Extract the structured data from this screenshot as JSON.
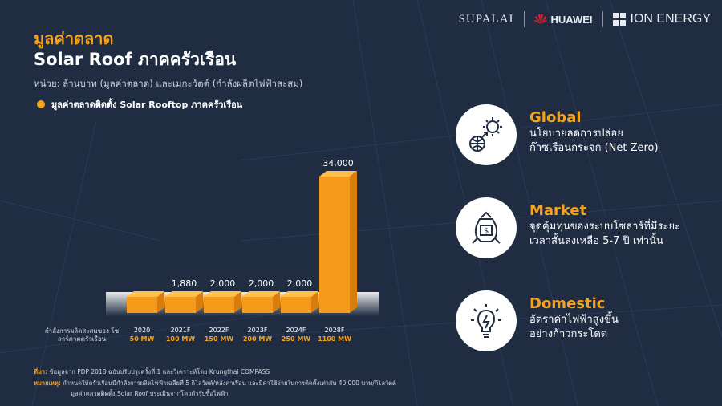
{
  "brands": {
    "supalai": "SUPALAI",
    "huawei": "HUAWEI",
    "ion": "ION ENERGY"
  },
  "header": {
    "title_th": "มูลค่าตลาด",
    "title_en": "Solar Roof ภาคครัวเรือน",
    "unit_note": "หน่วย: ล้านบาท (มูลค่าตลาด) และเมกะวัตต์ (กำลังผลิตไฟฟ้าสะสม)",
    "legend": "มูลค่าตลาดติดตั้ง Solar Rooftop ภาคครัวเรือน"
  },
  "colors": {
    "accent": "#f5a21c",
    "background": "#1f2c42"
  },
  "chart_data": {
    "type": "bar",
    "categories": [
      "2020",
      "2021F",
      "2022F",
      "2023F",
      "2024F",
      "2028F"
    ],
    "values": [
      null,
      1880,
      2000,
      2000,
      2000,
      34000
    ],
    "value_labels": [
      "",
      "1,880",
      "2,000",
      "2,000",
      "2,000",
      "34,000"
    ],
    "capacity_labels": [
      "50 MW",
      "100 MW",
      "150 MW",
      "200 MW",
      "250 MW",
      "1100 MW"
    ],
    "row_label": "กำลังการผลิตสะสมของ โซลาร์ภาคครัวเรือน",
    "title": "",
    "xlabel": "",
    "ylabel": "",
    "ylim": [
      0,
      34000
    ],
    "grid": false
  },
  "features": [
    {
      "title": "Global",
      "desc1": "นโยบายลดการปล่อย",
      "desc2": "ก๊าซเรือนกระจก (Net Zero)",
      "icon": "globe-sun-icon"
    },
    {
      "title": "Market",
      "desc1": "จุดคุ้มทุนของระบบโซลาร์ที่มีระยะ",
      "desc2": "เวลาสั้นลงเหลือ 5-7 ปี เท่านั้น",
      "icon": "money-bag-icon"
    },
    {
      "title": "Domestic",
      "desc1": "อัตราค่าไฟฟ้าสูงขึ้น",
      "desc2": "อย่างก้าวกระโดด",
      "icon": "lightbulb-icon"
    }
  ],
  "footnotes": {
    "source_label": "ที่มา:",
    "source": "ข้อมูลจาก PDP 2018 ฉบับปรับปรุงครั้งที่ 1 และวิเคราะห์โดย Krungthai COMPASS",
    "remark_label": "หมายเหตุ:",
    "remark1": "กำหนดให้ครัวเรือนมีกำลังการผลิตไฟฟ้าเฉลี่ยที่ 5 กิโลวัตต์/หลังคาเรือน และมีค่าใช้จ่ายในการติดตั้งเท่ากับ 40,000 บาท/กิโลวัตต์",
    "remark2": "มูลค่าตลาดติดตั้ง Solar Roof ประเมินจากโควต้ารับซื้อไฟฟ้า"
  }
}
